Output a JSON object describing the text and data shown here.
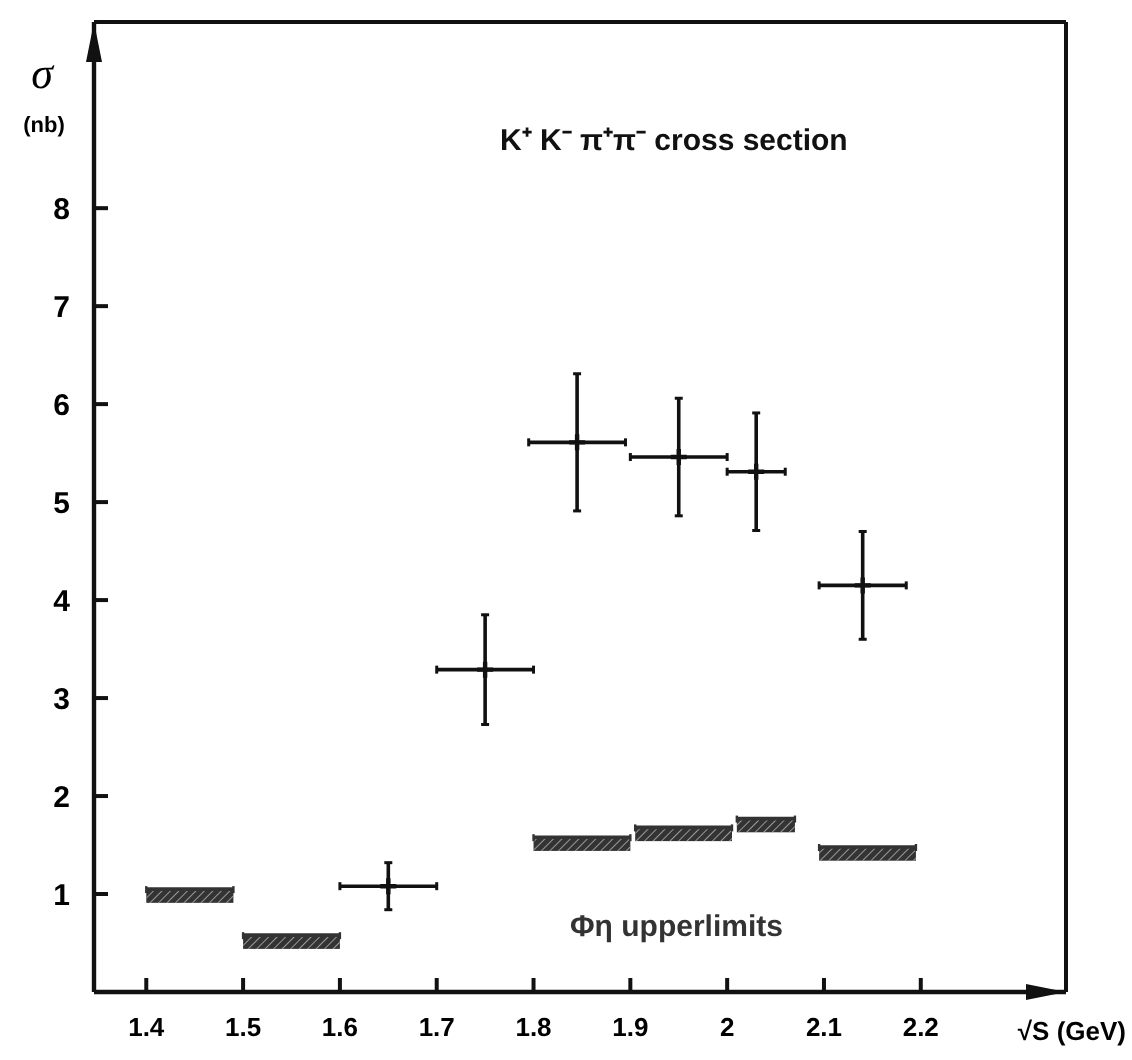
{
  "chart_data": {
    "type": "scatter",
    "xlabel": "√S (GeV)",
    "ylabel": "σ$_{(nb)}$",
    "xlim": [
      1.346,
      2.35
    ],
    "ylim": [
      0,
      9.9
    ],
    "xticks": [
      1.4,
      1.5,
      1.6,
      1.7,
      1.8,
      1.9,
      2.0,
      2.1,
      2.2
    ],
    "yticks": [
      1,
      2,
      3,
      4,
      5,
      6,
      7,
      8
    ],
    "marker": "cross",
    "grid": false,
    "series": [
      {
        "name": "K⁺ K⁻ π⁺π⁻ cross section",
        "color": "#111111",
        "x": [
          1.65,
          1.75,
          1.845,
          1.95,
          2.03,
          2.14
        ],
        "values": [
          1.08,
          3.29,
          5.61,
          5.46,
          5.31,
          4.15
        ],
        "errors": [
          0.24,
          0.56,
          0.7,
          0.6,
          0.6,
          0.55
        ],
        "xerrors": [
          0.05,
          0.05,
          0.05,
          0.05,
          0.03,
          0.045
        ]
      },
      {
        "name": "Φη upperlimits",
        "type": "bar",
        "color": "#333333",
        "x": [
          1.445,
          1.55,
          1.85,
          1.955,
          2.04,
          2.145
        ],
        "base": [
          0.91,
          0.44,
          1.44,
          1.54,
          1.63,
          1.34
        ],
        "values": [
          0.14,
          0.14,
          0.14,
          0.14,
          0.14,
          0.14
        ],
        "xerrors": [
          0.045,
          0.05,
          0.05,
          0.05,
          0.03,
          0.05
        ]
      }
    ]
  }
}
